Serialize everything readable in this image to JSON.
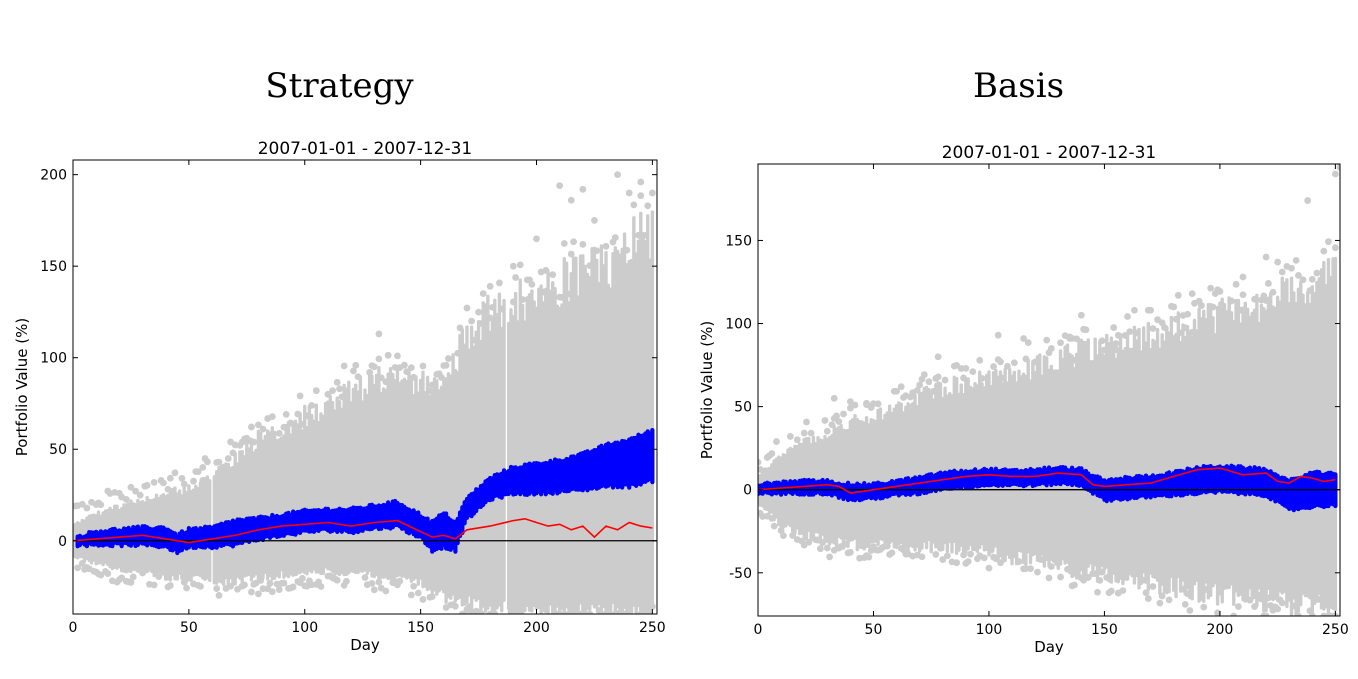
{
  "colors": {
    "simulations": "#cccccc",
    "band": "#0000ff",
    "mean": "#ff0000",
    "zero_line": "#000000"
  },
  "chart_data": [
    {
      "type": "scatter",
      "heading": "Strategy",
      "title": "2007-01-01 - 2007-12-31",
      "xlabel": "Day",
      "ylabel": "Portfolio Value (%)",
      "xlim": [
        0,
        252
      ],
      "ylim": [
        -40,
        208
      ],
      "xticks": [
        0,
        50,
        100,
        150,
        200,
        250
      ],
      "yticks": [
        0,
        50,
        100,
        150,
        200
      ],
      "grid": false,
      "series": [
        {
          "role": "simulations",
          "style": "grey scatter",
          "x": [
            0,
            10,
            20,
            30,
            40,
            50,
            60,
            70,
            80,
            90,
            100,
            110,
            120,
            130,
            140,
            150,
            160,
            170,
            180,
            190,
            200,
            210,
            220,
            230,
            240,
            250
          ],
          "upper": [
            8,
            14,
            18,
            22,
            25,
            28,
            34,
            45,
            55,
            60,
            67,
            72,
            80,
            86,
            88,
            86,
            88,
            110,
            125,
            130,
            135,
            140,
            145,
            150,
            160,
            170
          ],
          "lower": [
            -8,
            -12,
            -15,
            -17,
            -19,
            -20,
            -22,
            -22,
            -20,
            -18,
            -17,
            -16,
            -17,
            -18,
            -20,
            -23,
            -30,
            -33,
            -35,
            -37,
            -38,
            -38,
            -38,
            -38,
            -38,
            -38
          ],
          "outliers_high": [
            [
              48,
              31
            ],
            [
              56,
              33
            ],
            [
              68,
              54
            ],
            [
              75,
              56
            ],
            [
              85,
              58
            ],
            [
              92,
              62
            ],
            [
              105,
              82
            ],
            [
              115,
              83
            ],
            [
              128,
              92
            ],
            [
              132,
              113
            ],
            [
              140,
              101
            ],
            [
              150,
              80
            ],
            [
              172,
              120
            ],
            [
              180,
              139
            ],
            [
              190,
              150
            ],
            [
              200,
              165
            ],
            [
              210,
              194
            ],
            [
              215,
              186
            ],
            [
              220,
              192
            ],
            [
              225,
              175
            ],
            [
              235,
              200
            ],
            [
              240,
              190
            ],
            [
              245,
              196
            ],
            [
              248,
              183
            ],
            [
              250,
              190
            ]
          ],
          "gaps": [
            60,
            187
          ]
        },
        {
          "role": "band",
          "style": "blue thick band",
          "x": [
            2,
            10,
            20,
            30,
            40,
            45,
            50,
            60,
            70,
            80,
            90,
            100,
            110,
            120,
            130,
            140,
            150,
            155,
            160,
            165,
            170,
            180,
            190,
            200,
            210,
            220,
            230,
            240,
            250
          ],
          "upper": [
            2,
            5,
            6,
            7,
            7,
            3,
            6,
            7,
            11,
            12,
            14,
            16,
            17,
            17,
            19,
            21,
            14,
            10,
            15,
            10,
            23,
            34,
            40,
            42,
            44,
            47,
            52,
            55,
            60
          ],
          "lower": [
            -2,
            -2,
            -2,
            -2,
            -3,
            -6,
            -3,
            -3,
            -2,
            1,
            3,
            5,
            6,
            5,
            7,
            8,
            2,
            -5,
            -3,
            -5,
            12,
            23,
            26,
            26,
            27,
            28,
            30,
            30,
            33
          ]
        },
        {
          "role": "mean",
          "style": "red line",
          "x": [
            0,
            10,
            20,
            30,
            40,
            50,
            60,
            70,
            80,
            90,
            100,
            110,
            120,
            130,
            140,
            150,
            155,
            160,
            165,
            170,
            180,
            190,
            195,
            200,
            205,
            210,
            215,
            220,
            225,
            230,
            235,
            240,
            245,
            250
          ],
          "y": [
            0,
            1,
            2,
            3,
            1,
            -1,
            1,
            3,
            6,
            8,
            9,
            10,
            8,
            10,
            11,
            5,
            2,
            3,
            1,
            6,
            8,
            11,
            12,
            10,
            8,
            9,
            6,
            8,
            2,
            8,
            6,
            10,
            8,
            7
          ]
        },
        {
          "role": "zero_line",
          "style": "black line",
          "y": 0
        }
      ]
    },
    {
      "type": "scatter",
      "heading": "Basis",
      "title": "2007-01-01 - 2007-12-31",
      "xlabel": "Day",
      "ylabel": "Portfolio Value (%)",
      "xlim": [
        0,
        252
      ],
      "ylim": [
        -76,
        196
      ],
      "xticks": [
        0,
        50,
        100,
        150,
        200,
        250
      ],
      "yticks": [
        -50,
        0,
        50,
        100,
        150
      ],
      "grid": false,
      "series": [
        {
          "role": "simulations",
          "style": "grey scatter",
          "x": [
            0,
            10,
            20,
            30,
            40,
            50,
            60,
            70,
            80,
            90,
            100,
            110,
            120,
            130,
            140,
            150,
            160,
            170,
            180,
            190,
            200,
            210,
            220,
            230,
            240,
            250
          ],
          "upper": [
            8,
            20,
            28,
            33,
            40,
            44,
            48,
            55,
            60,
            63,
            67,
            70,
            73,
            78,
            82,
            85,
            88,
            92,
            96,
            100,
            104,
            108,
            112,
            118,
            123,
            128
          ],
          "lower": [
            -8,
            -20,
            -27,
            -30,
            -33,
            -33,
            -32,
            -33,
            -34,
            -35,
            -37,
            -40,
            -42,
            -45,
            -48,
            -50,
            -52,
            -55,
            -58,
            -60,
            -62,
            -64,
            -66,
            -68,
            -70,
            -72
          ],
          "outliers_high": [
            [
              33,
              55
            ],
            [
              40,
              53
            ],
            [
              47,
              52
            ],
            [
              62,
              62
            ],
            [
              70,
              63
            ],
            [
              78,
              80
            ],
            [
              90,
              73
            ],
            [
              104,
              93
            ],
            [
              115,
              91
            ],
            [
              125,
              90
            ],
            [
              135,
              91
            ],
            [
              140,
              105
            ],
            [
              155,
              88
            ],
            [
              170,
              108
            ],
            [
              180,
              110
            ],
            [
              188,
              118
            ],
            [
              198,
              118
            ],
            [
              210,
              128
            ],
            [
              220,
              140
            ],
            [
              225,
              137
            ],
            [
              233,
              138
            ],
            [
              238,
              174
            ],
            [
              250,
              190
            ],
            [
              252,
              194
            ]
          ],
          "gaps": []
        },
        {
          "role": "band",
          "style": "blue thick band",
          "x": [
            0,
            10,
            20,
            30,
            40,
            50,
            60,
            70,
            80,
            90,
            100,
            110,
            120,
            130,
            140,
            150,
            160,
            170,
            180,
            190,
            200,
            210,
            220,
            230,
            240,
            250
          ],
          "upper": [
            3,
            4,
            5,
            5,
            3,
            3,
            5,
            7,
            10,
            11,
            12,
            11,
            12,
            13,
            12,
            5,
            7,
            8,
            10,
            13,
            14,
            13,
            12,
            5,
            10,
            9
          ],
          "lower": [
            -2,
            -2,
            -2,
            -2,
            -6,
            -5,
            -3,
            -2,
            1,
            2,
            3,
            3,
            3,
            4,
            3,
            -6,
            -5,
            -4,
            -3,
            -2,
            -1,
            -2,
            -3,
            -12,
            -10,
            -9
          ]
        },
        {
          "role": "mean",
          "style": "red line",
          "x": [
            0,
            10,
            20,
            30,
            35,
            40,
            45,
            50,
            60,
            70,
            80,
            90,
            100,
            110,
            120,
            130,
            140,
            145,
            150,
            160,
            170,
            180,
            190,
            200,
            210,
            220,
            225,
            230,
            235,
            240,
            245,
            250
          ],
          "y": [
            0,
            1,
            2,
            3,
            2,
            -2,
            -1,
            0,
            2,
            4,
            6,
            8,
            9,
            8,
            8,
            10,
            9,
            3,
            2,
            3,
            4,
            8,
            12,
            13,
            9,
            10,
            5,
            4,
            8,
            7,
            5,
            6
          ]
        },
        {
          "role": "zero_line",
          "style": "black line",
          "y": 0
        }
      ]
    }
  ]
}
